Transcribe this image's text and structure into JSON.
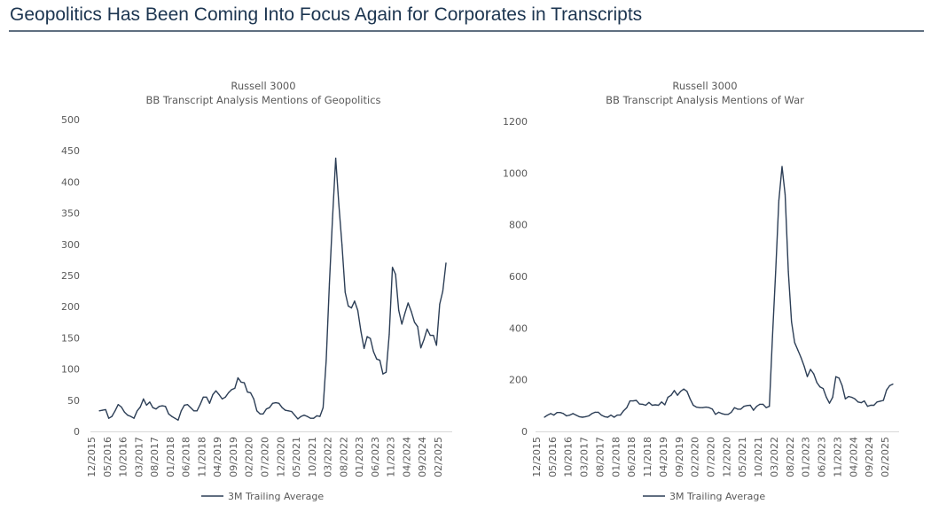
{
  "header": {
    "title": "Geopolitics Has Been Coming Into Focus Again for Corporates in Transcripts"
  },
  "colors": {
    "title": "#1c3550",
    "line": "#2c3e56",
    "axis_text": "#595959",
    "rule": "#5f6f80"
  },
  "chart_data": [
    {
      "type": "line",
      "title": [
        "Russell 3000",
        "BB Transcript Analysis Mentions of Geopolitics"
      ],
      "ylim": [
        0,
        500
      ],
      "yticks": [
        0,
        50,
        100,
        150,
        200,
        250,
        300,
        350,
        400,
        450,
        500
      ],
      "start": "12/2015",
      "end": "02/2025",
      "frequency": "monthly",
      "xtick_labels": [
        "12/2015",
        "05/2016",
        "10/2016",
        "03/2017",
        "08/2017",
        "01/2018",
        "06/2018",
        "11/2018",
        "04/2019",
        "09/2019",
        "02/2020",
        "07/2020",
        "12/2020",
        "05/2021",
        "10/2021",
        "03/2022",
        "08/2022",
        "01/2023",
        "06/2023",
        "11/2023",
        "04/2024",
        "09/2024",
        "02/2025"
      ],
      "grid": false,
      "legend_placement": "bottom",
      "series": [
        {
          "name": "3M Trailing Average",
          "values": [
            33,
            34,
            35,
            21,
            24,
            33,
            43,
            39,
            31,
            26,
            24,
            21,
            33,
            39,
            52,
            42,
            47,
            38,
            36,
            40,
            41,
            40,
            28,
            24,
            21,
            18,
            33,
            42,
            43,
            38,
            33,
            33,
            43,
            55,
            55,
            45,
            59,
            65,
            59,
            52,
            55,
            62,
            67,
            69,
            86,
            79,
            78,
            63,
            62,
            52,
            33,
            28,
            28,
            36,
            38,
            45,
            46,
            45,
            38,
            34,
            33,
            32,
            26,
            20,
            24,
            26,
            24,
            21,
            21,
            25,
            24,
            38,
            114,
            237,
            341,
            438,
            365,
            299,
            223,
            201,
            198,
            209,
            194,
            161,
            133,
            152,
            149,
            128,
            116,
            114,
            92,
            95,
            156,
            263,
            252,
            194,
            172,
            190,
            206,
            192,
            175,
            168,
            134,
            147,
            164,
            154,
            154,
            138,
            204,
            225,
            270
          ]
        }
      ]
    },
    {
      "type": "line",
      "title": [
        "Russell 3000",
        "BB Transcript Analysis Mentions of War"
      ],
      "ylim": [
        0,
        1200
      ],
      "yticks": [
        0,
        200,
        400,
        600,
        800,
        1000,
        1200
      ],
      "start": "12/2015",
      "end": "02/2025",
      "frequency": "monthly",
      "xtick_labels": [
        "12/2015",
        "05/2016",
        "10/2016",
        "03/2017",
        "08/2017",
        "01/2018",
        "06/2018",
        "11/2018",
        "04/2019",
        "09/2019",
        "02/2020",
        "07/2020",
        "12/2020",
        "05/2021",
        "10/2021",
        "03/2022",
        "08/2022",
        "01/2023",
        "06/2023",
        "11/2023",
        "04/2024",
        "09/2024",
        "02/2025"
      ],
      "grid": false,
      "legend_placement": "bottom",
      "series": [
        {
          "name": "3M Trailing Average",
          "values": [
            55,
            63,
            69,
            63,
            73,
            73,
            69,
            60,
            63,
            69,
            63,
            57,
            55,
            57,
            60,
            69,
            74,
            74,
            63,
            57,
            55,
            63,
            55,
            63,
            63,
            80,
            92,
            118,
            118,
            120,
            106,
            105,
            101,
            112,
            101,
            103,
            101,
            114,
            103,
            132,
            140,
            158,
            140,
            155,
            164,
            155,
            126,
            101,
            94,
            92,
            92,
            94,
            92,
            86,
            66,
            74,
            69,
            66,
            66,
            74,
            92,
            86,
            86,
            97,
            100,
            101,
            82,
            97,
            105,
            105,
            92,
            97,
            366,
            618,
            893,
            1025,
            916,
            618,
            424,
            344,
            315,
            286,
            252,
            212,
            240,
            223,
            189,
            172,
            166,
            132,
            109,
            132,
            212,
            206,
            177,
            126,
            135,
            132,
            126,
            114,
            111,
            118,
            97,
            101,
            101,
            114,
            117,
            120,
            160,
            177,
            183
          ]
        }
      ]
    }
  ]
}
